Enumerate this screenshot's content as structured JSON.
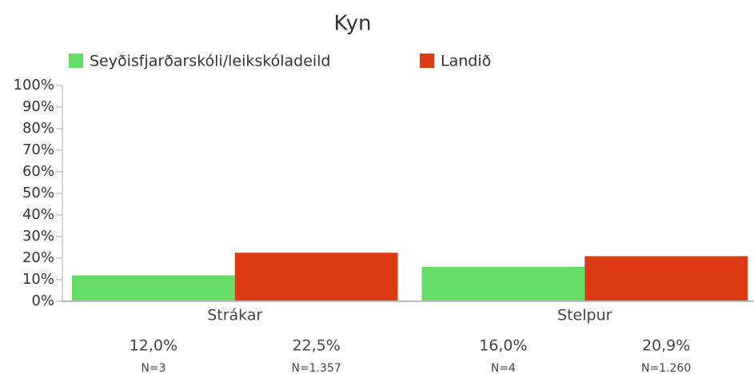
{
  "chart_data": {
    "type": "bar",
    "title": "Kyn",
    "categories": [
      "Strákar",
      "Stelpur"
    ],
    "series": [
      {
        "name": "Seyðisfjarðarskóli/leikskóladeild",
        "color": "#66dd66",
        "values": [
          12.0,
          16.0
        ],
        "value_labels": [
          "12,0%",
          "16,0%"
        ],
        "n_labels": [
          "N=3",
          "N=4"
        ]
      },
      {
        "name": "Landið",
        "color": "#dd3b14",
        "values": [
          22.5,
          20.9
        ],
        "value_labels": [
          "22,5%",
          "20,9%"
        ],
        "n_labels": [
          "N=1.357",
          "N=1.260"
        ]
      }
    ],
    "ylim": [
      0,
      100
    ],
    "yticks": [
      {
        "value": 0,
        "label": "0%"
      },
      {
        "value": 10,
        "label": "10%"
      },
      {
        "value": 20,
        "label": "20%"
      },
      {
        "value": 30,
        "label": "30%"
      },
      {
        "value": 40,
        "label": "40%"
      },
      {
        "value": 50,
        "label": "50%"
      },
      {
        "value": 60,
        "label": "60%"
      },
      {
        "value": 70,
        "label": "70%"
      },
      {
        "value": 80,
        "label": "80%"
      },
      {
        "value": 90,
        "label": "90%"
      },
      {
        "value": 100,
        "label": "100%"
      }
    ],
    "grid": false,
    "legend": "top"
  }
}
